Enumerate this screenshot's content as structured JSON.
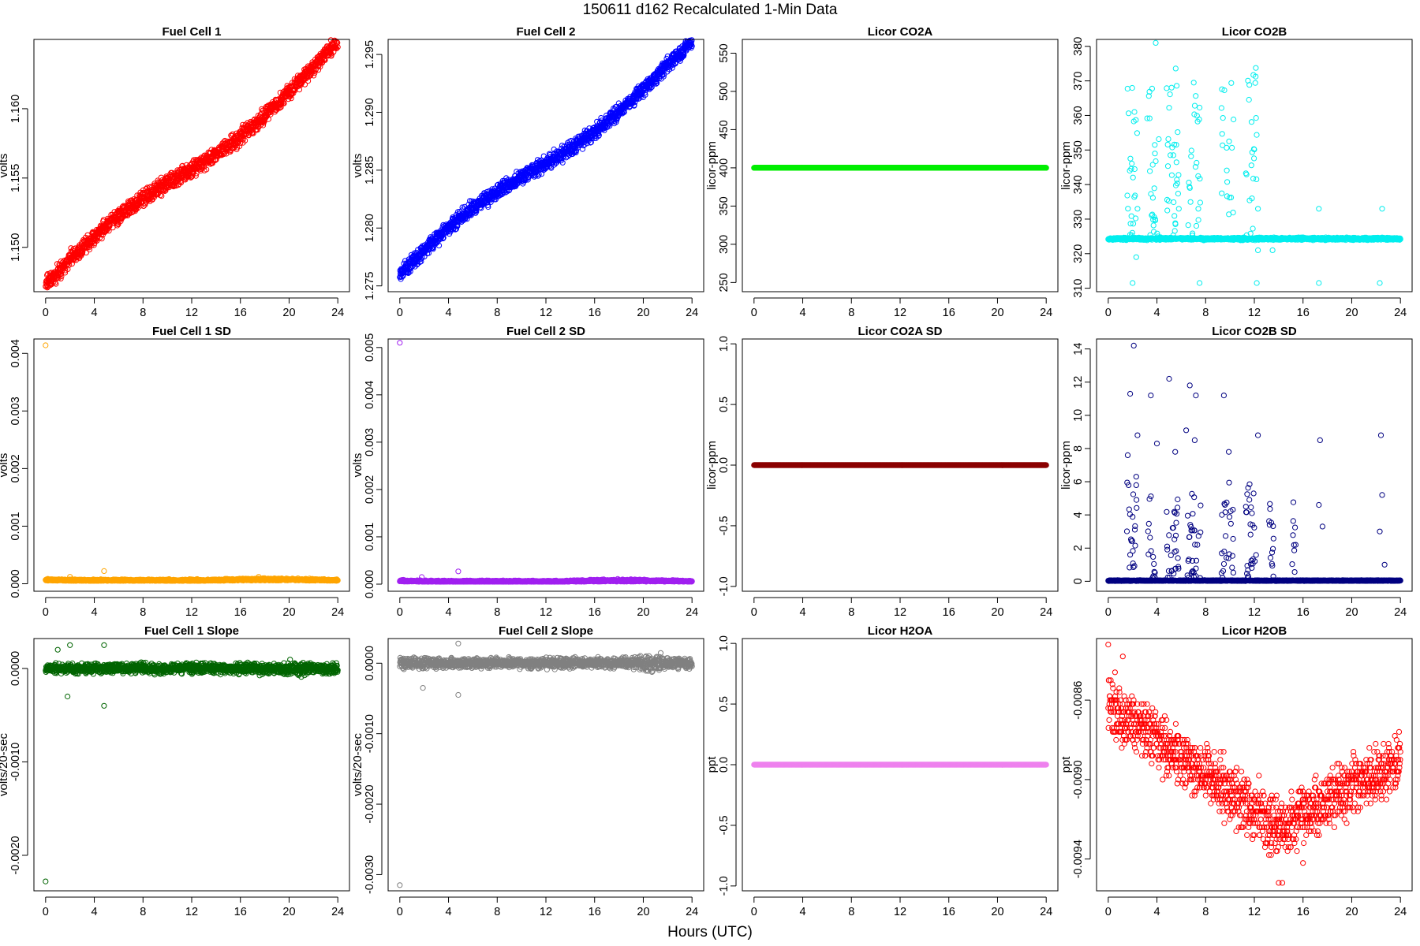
{
  "figure": {
    "suptitle": "150611   d162   Recalculated 1-Min Data",
    "xlabel": "Hours (UTC)"
  },
  "chart_data": [
    {
      "id": "p1",
      "type": "scatter",
      "title": "Fuel Cell 1",
      "ylabel": "volts",
      "color": "#ff0000",
      "xlim": [
        -0.96,
        24.96
      ],
      "ylim": [
        1.1468,
        1.165
      ],
      "xticks": [
        0,
        4,
        8,
        12,
        16,
        20,
        24
      ],
      "yticks": [
        1.15,
        1.155,
        1.16
      ],
      "yticklabels": [
        "1.150",
        "1.155",
        "1.160"
      ],
      "gen": "ramp",
      "start": 1.1471,
      "end": 1.1642,
      "noise": 0.00035,
      "bands": 2,
      "band_gap": 0.0004,
      "n": 1440,
      "seed": 11
    },
    {
      "id": "p2",
      "type": "scatter",
      "title": "Fuel Cell 2",
      "ylabel": "volts",
      "color": "#0000ff",
      "xlim": [
        -0.96,
        24.96
      ],
      "ylim": [
        1.2745,
        1.2963
      ],
      "xticks": [
        0,
        4,
        8,
        12,
        16,
        20,
        24
      ],
      "yticks": [
        1.275,
        1.28,
        1.285,
        1.29,
        1.295
      ],
      "yticklabels": [
        "1.275",
        "1.280",
        "1.285",
        "1.290",
        "1.295"
      ],
      "gen": "ramp",
      "start": 1.2758,
      "end": 1.2955,
      "noise": 0.0004,
      "bands": 2,
      "band_gap": 0.0004,
      "n": 1440,
      "seed": 12
    },
    {
      "id": "p3",
      "type": "scatter",
      "title": "Licor CO2A",
      "ylabel": "licor-ppm",
      "color": "#00ee00",
      "xlim": [
        -0.96,
        24.96
      ],
      "ylim": [
        238,
        568
      ],
      "xticks": [
        0,
        4,
        8,
        12,
        16,
        20,
        24
      ],
      "yticks": [
        250,
        300,
        350,
        400,
        450,
        500,
        550
      ],
      "yticklabels": [
        "250",
        "300",
        "350",
        "400",
        "450",
        "500",
        "550"
      ],
      "gen": "flat",
      "value": 400,
      "noise": 0,
      "n": 1440,
      "seed": 13
    },
    {
      "id": "p4",
      "type": "scatter",
      "title": "Licor CO2B",
      "ylabel": "licor-ppm",
      "color": "#00eeee",
      "xlim": [
        -0.96,
        24.96
      ],
      "ylim": [
        309,
        382
      ],
      "xticks": [
        0,
        4,
        8,
        12,
        16,
        20,
        24
      ],
      "yticks": [
        310,
        320,
        330,
        340,
        350,
        360,
        370,
        380
      ],
      "yticklabels": [
        "310",
        "320",
        "330",
        "340",
        "350",
        "360",
        "370",
        "380"
      ],
      "gen": "spikes",
      "base": 324.3,
      "noise": 0.3,
      "n": 1440,
      "seed": 14,
      "bursts": [
        [
          1.5,
          2.4
        ],
        [
          3.2,
          4.2
        ],
        [
          4.8,
          5.8
        ],
        [
          6.5,
          7.6
        ],
        [
          9.3,
          10.3
        ],
        [
          11.3,
          12.2
        ]
      ],
      "burst_lo": 325,
      "burst_hi": 375,
      "burst_density": 0.45,
      "extra": [
        [
          2.0,
          311.5
        ],
        [
          7.5,
          311.5
        ],
        [
          12.2,
          311.5
        ],
        [
          17.3,
          311.5
        ],
        [
          22.3,
          311.5
        ],
        [
          2.4,
          333
        ],
        [
          5.8,
          333
        ],
        [
          7.4,
          333
        ],
        [
          12.3,
          333
        ],
        [
          17.3,
          333
        ],
        [
          22.5,
          333
        ],
        [
          2.3,
          319
        ],
        [
          3.9,
          381
        ],
        [
          12.3,
          321
        ],
        [
          13.5,
          321
        ]
      ]
    },
    {
      "id": "p5",
      "type": "scatter",
      "title": "Fuel Cell 1 SD",
      "ylabel": "volts",
      "color": "#ffa500",
      "xlim": [
        -0.96,
        24.96
      ],
      "ylim": [
        -0.00013,
        0.00425
      ],
      "xticks": [
        0,
        4,
        8,
        12,
        16,
        20,
        24
      ],
      "yticks": [
        0,
        0.001,
        0.002,
        0.003,
        0.004
      ],
      "yticklabels": [
        "0.000",
        "0.001",
        "0.002",
        "0.003",
        "0.004"
      ],
      "gen": "floor",
      "value": 5e-05,
      "noise": 2e-05,
      "hump": 3e-05,
      "n": 1440,
      "seed": 15,
      "extra": [
        [
          0,
          0.00414
        ],
        [
          4.8,
          0.00022
        ],
        [
          2.0,
          0.00012
        ],
        [
          17.5,
          0.00012
        ]
      ]
    },
    {
      "id": "p6",
      "type": "scatter",
      "title": "Fuel Cell 2 SD",
      "ylabel": "volts",
      "color": "#a020f0",
      "xlim": [
        -0.96,
        24.96
      ],
      "ylim": [
        -0.00015,
        0.00518
      ],
      "xticks": [
        0,
        4,
        8,
        12,
        16,
        20,
        24
      ],
      "yticks": [
        0,
        0.001,
        0.002,
        0.003,
        0.004,
        0.005
      ],
      "yticklabels": [
        "0.000",
        "0.001",
        "0.002",
        "0.003",
        "0.004",
        "0.005"
      ],
      "gen": "floor",
      "value": 5e-05,
      "noise": 2e-05,
      "hump": 3e-05,
      "n": 1440,
      "seed": 16,
      "extra": [
        [
          0,
          0.0051
        ],
        [
          4.8,
          0.00027
        ],
        [
          1.8,
          0.00015
        ]
      ]
    },
    {
      "id": "p7",
      "type": "scatter",
      "title": "Licor CO2A SD",
      "ylabel": "licor-ppm",
      "color": "#8b0000",
      "xlim": [
        -0.96,
        24.96
      ],
      "ylim": [
        -1.04,
        1.04
      ],
      "xticks": [
        0,
        4,
        8,
        12,
        16,
        20,
        24
      ],
      "yticks": [
        -1.0,
        -0.5,
        0.0,
        0.5,
        1.0
      ],
      "yticklabels": [
        "-1.0",
        "-0.5",
        "0.0",
        "0.5",
        "1.0"
      ],
      "gen": "flat",
      "value": 0,
      "noise": 0,
      "n": 1440,
      "seed": 17
    },
    {
      "id": "p8",
      "type": "scatter",
      "title": "Licor CO2B SD",
      "ylabel": "licor-ppm",
      "color": "#000080",
      "xlim": [
        -0.96,
        24.96
      ],
      "ylim": [
        -0.6,
        14.6
      ],
      "xticks": [
        0,
        4,
        8,
        12,
        16,
        20,
        24
      ],
      "yticks": [
        0,
        2,
        4,
        6,
        8,
        10,
        12,
        14
      ],
      "yticklabels": [
        "0",
        "2",
        "4",
        "6",
        "8",
        "10",
        "12",
        "14"
      ],
      "gen": "spikes",
      "base": 0.04,
      "noise": 0.02,
      "n": 1440,
      "seed": 18,
      "bursts": [
        [
          1.5,
          2.4
        ],
        [
          3.2,
          4.2
        ],
        [
          4.8,
          5.8
        ],
        [
          6.5,
          7.6
        ],
        [
          9.3,
          10.3
        ],
        [
          11.3,
          12.2
        ],
        [
          13.2,
          13.6
        ],
        [
          15.0,
          15.4
        ]
      ],
      "burst_lo": 0.2,
      "burst_hi": 6.0,
      "burst_density": 0.4,
      "extra": [
        [
          2.1,
          14.2
        ],
        [
          1.8,
          11.3
        ],
        [
          3.5,
          11.2
        ],
        [
          5.0,
          12.2
        ],
        [
          6.7,
          11.8
        ],
        [
          7.2,
          11.2
        ],
        [
          9.5,
          11.2
        ],
        [
          2.4,
          8.8
        ],
        [
          4.0,
          8.3
        ],
        [
          6.4,
          9.1
        ],
        [
          7.1,
          8.5
        ],
        [
          9.9,
          7.8
        ],
        [
          12.3,
          8.8
        ],
        [
          5.5,
          7.8
        ],
        [
          17.4,
          8.5
        ],
        [
          22.4,
          8.8
        ],
        [
          17.3,
          4.6
        ],
        [
          17.6,
          3.3
        ],
        [
          22.5,
          5.2
        ],
        [
          22.3,
          3.0
        ],
        [
          22.7,
          1.0
        ],
        [
          1.6,
          7.6
        ],
        [
          2.3,
          6.3
        ]
      ]
    },
    {
      "id": "p9",
      "type": "scatter",
      "title": "Fuel Cell 1 Slope",
      "ylabel": "volts/20-sec",
      "color": "#006400",
      "xlim": [
        -0.96,
        24.96
      ],
      "ylim": [
        -0.00238,
        0.00032
      ],
      "xticks": [
        0,
        4,
        8,
        12,
        16,
        20,
        24
      ],
      "yticks": [
        -0.002,
        -0.001,
        0.0
      ],
      "yticklabels": [
        "-0.0020",
        "-0.0010",
        "0.0000"
      ],
      "gen": "slope",
      "value": 0,
      "noise": 4.5e-05,
      "n": 1440,
      "seed": 19,
      "extra": [
        [
          0,
          -0.00228
        ],
        [
          4.8,
          -0.0004
        ],
        [
          4.8,
          0.00025
        ],
        [
          2.0,
          0.00025
        ],
        [
          1.8,
          -0.0003
        ],
        [
          1.0,
          0.0002
        ]
      ]
    },
    {
      "id": "p10",
      "type": "scatter",
      "title": "Fuel Cell 2 Slope",
      "ylabel": "volts/20-sec",
      "color": "#808080",
      "xlim": [
        -0.96,
        24.96
      ],
      "ylim": [
        -0.00323,
        0.00035
      ],
      "xticks": [
        0,
        4,
        8,
        12,
        16,
        20,
        24
      ],
      "yticks": [
        -0.003,
        -0.002,
        -0.001,
        0.0
      ],
      "yticklabels": [
        "-0.0030",
        "-0.0020",
        "-0.0010",
        "0.0000"
      ],
      "gen": "slope",
      "value": 0,
      "noise": 6e-05,
      "n": 1440,
      "seed": 20,
      "extra": [
        [
          0,
          -0.00315
        ],
        [
          4.8,
          -0.00045
        ],
        [
          4.8,
          0.00028
        ],
        [
          1.9,
          -0.00035
        ]
      ]
    },
    {
      "id": "p11",
      "type": "scatter",
      "title": "Licor H2OA",
      "ylabel": "ppt",
      "color": "#ee82ee",
      "xlim": [
        -0.96,
        24.96
      ],
      "ylim": [
        -1.04,
        1.04
      ],
      "xticks": [
        0,
        4,
        8,
        12,
        16,
        20,
        24
      ],
      "yticks": [
        -1.0,
        -0.5,
        0.0,
        0.5,
        1.0
      ],
      "yticklabels": [
        "-1.0",
        "-0.5",
        "0.0",
        "0.5",
        "1.0"
      ],
      "gen": "flat",
      "value": 0,
      "noise": 0,
      "n": 1440,
      "seed": 21
    },
    {
      "id": "p12",
      "type": "scatter",
      "title": "Licor H2OB",
      "ylabel": "ppt",
      "color": "#ff0000",
      "xlim": [
        -0.96,
        24.96
      ],
      "ylim": [
        -0.00956,
        -0.00829
      ],
      "xticks": [
        0,
        4,
        8,
        12,
        16,
        20,
        24
      ],
      "yticks": [
        -0.0094,
        -0.009,
        -0.0086
      ],
      "yticklabels": [
        "-0.0094",
        "-0.0090",
        "-0.0086"
      ],
      "gen": "h2o",
      "step": 2e-05,
      "n": 1300,
      "seed": 22,
      "extra": [
        [
          0,
          -0.00832
        ],
        [
          1.2,
          -0.00838
        ],
        [
          14,
          -0.00952
        ],
        [
          14.3,
          -0.00952
        ],
        [
          16,
          -0.00942
        ],
        [
          13.2,
          -0.00938
        ]
      ]
    }
  ]
}
